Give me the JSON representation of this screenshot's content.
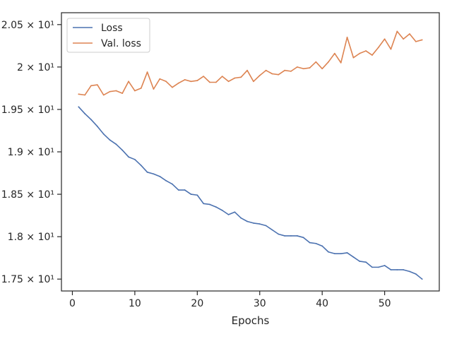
{
  "chart_data": {
    "type": "line",
    "title": "",
    "xlabel": "Epochs",
    "ylabel": "",
    "xlim": [
      -1.75,
      58.75
    ],
    "ylim": [
      17.36,
      20.64
    ],
    "x_ticks": [
      0,
      10,
      20,
      30,
      40,
      50
    ],
    "x_tick_labels": [
      "0",
      "10",
      "20",
      "30",
      "40",
      "50"
    ],
    "y_ticks": [
      17.5,
      18.0,
      18.5,
      19.0,
      19.5,
      20.0,
      20.5
    ],
    "y_tick_labels": [
      "1.75 × 10¹",
      "1.8 × 10¹",
      "1.85 × 10¹",
      "1.9 × 10¹",
      "1.95 × 10¹",
      "2 × 10¹",
      "2.05 × 10¹"
    ],
    "grid": false,
    "legend_position": "top-left",
    "x": [
      1,
      2,
      3,
      4,
      5,
      6,
      7,
      8,
      9,
      10,
      11,
      12,
      13,
      14,
      15,
      16,
      17,
      18,
      19,
      20,
      21,
      22,
      23,
      24,
      25,
      26,
      27,
      28,
      29,
      30,
      31,
      32,
      33,
      34,
      35,
      36,
      37,
      38,
      39,
      40,
      41,
      42,
      43,
      44,
      45,
      46,
      47,
      48,
      49,
      50,
      51,
      52,
      53,
      54,
      55,
      56
    ],
    "series": [
      {
        "name": "Loss",
        "color": "#4c72b0",
        "values": [
          19.53,
          19.45,
          19.38,
          19.3,
          19.21,
          19.14,
          19.09,
          19.02,
          18.94,
          18.91,
          18.84,
          18.76,
          18.74,
          18.71,
          18.66,
          18.62,
          18.55,
          18.55,
          18.5,
          18.49,
          18.39,
          18.38,
          18.35,
          18.31,
          18.26,
          18.29,
          18.22,
          18.18,
          18.16,
          18.15,
          18.13,
          18.08,
          18.03,
          18.01,
          18.01,
          18.01,
          17.99,
          17.93,
          17.92,
          17.89,
          17.82,
          17.8,
          17.8,
          17.81,
          17.76,
          17.71,
          17.7,
          17.64,
          17.64,
          17.66,
          17.61,
          17.61,
          17.61,
          17.59,
          17.56,
          17.5
        ]
      },
      {
        "name": "Val. loss",
        "color": "#dd8452",
        "values": [
          19.68,
          19.67,
          19.78,
          19.79,
          19.67,
          19.71,
          19.72,
          19.69,
          19.83,
          19.72,
          19.75,
          19.94,
          19.74,
          19.86,
          19.83,
          19.76,
          19.81,
          19.85,
          19.83,
          19.84,
          19.89,
          19.82,
          19.82,
          19.89,
          19.83,
          19.87,
          19.88,
          19.96,
          19.83,
          19.9,
          19.96,
          19.92,
          19.91,
          19.96,
          19.95,
          20.0,
          19.98,
          19.99,
          20.06,
          19.98,
          20.06,
          20.16,
          20.05,
          20.35,
          20.11,
          20.16,
          20.19,
          20.14,
          20.23,
          20.33,
          20.21,
          20.42,
          20.33,
          20.39,
          20.3,
          20.32
        ]
      }
    ]
  }
}
